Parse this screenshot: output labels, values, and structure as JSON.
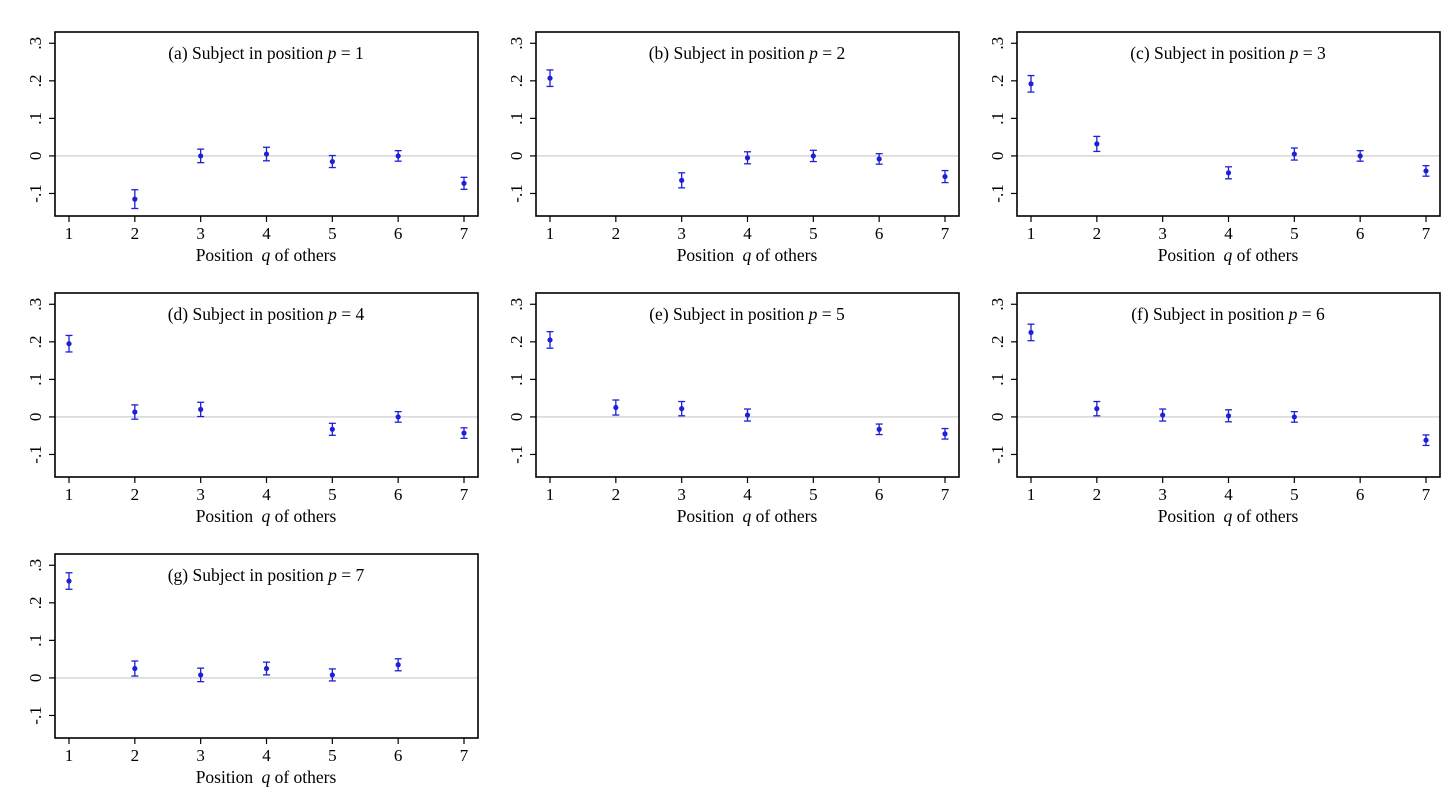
{
  "colors": {
    "marker": "#1f1fd6",
    "zero_line": "#c8c8c8",
    "frame": "#000000",
    "text": "#000000"
  },
  "chart_data": [
    {
      "type": "scatter",
      "title_prefix": "(a) Subject in position ",
      "title_var": "p",
      "title_suffix": " = 1",
      "xlabel_prefix": "Position ",
      "xlabel_var": "q",
      "xlabel_suffix": " of others",
      "x_ticks": [
        "1",
        "2",
        "3",
        "4",
        "5",
        "6",
        "7"
      ],
      "y_ticks": [
        "-.1",
        "0",
        ".1",
        ".2",
        ".3"
      ],
      "xlim": [
        1,
        7
      ],
      "ylim": [
        -0.16,
        0.33
      ],
      "reference_line": 0,
      "points": [
        {
          "x": 2,
          "y": -0.115,
          "lo": -0.14,
          "hi": -0.09
        },
        {
          "x": 3,
          "y": 0.0,
          "lo": -0.018,
          "hi": 0.018
        },
        {
          "x": 4,
          "y": 0.005,
          "lo": -0.013,
          "hi": 0.023
        },
        {
          "x": 5,
          "y": -0.015,
          "lo": -0.031,
          "hi": 0.001
        },
        {
          "x": 6,
          "y": 0.0,
          "lo": -0.014,
          "hi": 0.014
        },
        {
          "x": 7,
          "y": -0.073,
          "lo": -0.089,
          "hi": -0.057
        }
      ]
    },
    {
      "type": "scatter",
      "title_prefix": "(b) Subject in position ",
      "title_var": "p",
      "title_suffix": " = 2",
      "xlabel_prefix": "Position ",
      "xlabel_var": "q",
      "xlabel_suffix": " of others",
      "x_ticks": [
        "1",
        "2",
        "3",
        "4",
        "5",
        "6",
        "7"
      ],
      "y_ticks": [
        "-.1",
        "0",
        ".1",
        ".2",
        ".3"
      ],
      "xlim": [
        1,
        7
      ],
      "ylim": [
        -0.16,
        0.33
      ],
      "reference_line": 0,
      "points": [
        {
          "x": 1,
          "y": 0.207,
          "lo": 0.185,
          "hi": 0.229
        },
        {
          "x": 3,
          "y": -0.065,
          "lo": -0.085,
          "hi": -0.045
        },
        {
          "x": 4,
          "y": -0.005,
          "lo": -0.021,
          "hi": 0.011
        },
        {
          "x": 5,
          "y": 0.0,
          "lo": -0.015,
          "hi": 0.015
        },
        {
          "x": 6,
          "y": -0.008,
          "lo": -0.022,
          "hi": 0.006
        },
        {
          "x": 7,
          "y": -0.055,
          "lo": -0.071,
          "hi": -0.039
        }
      ]
    },
    {
      "type": "scatter",
      "title_prefix": "(c) Subject in position ",
      "title_var": "p",
      "title_suffix": " = 3",
      "xlabel_prefix": "Position ",
      "xlabel_var": "q",
      "xlabel_suffix": " of others",
      "x_ticks": [
        "1",
        "2",
        "3",
        "4",
        "5",
        "6",
        "7"
      ],
      "y_ticks": [
        "-.1",
        "0",
        ".1",
        ".2",
        ".3"
      ],
      "xlim": [
        1,
        7
      ],
      "ylim": [
        -0.16,
        0.33
      ],
      "reference_line": 0,
      "points": [
        {
          "x": 1,
          "y": 0.192,
          "lo": 0.17,
          "hi": 0.214
        },
        {
          "x": 2,
          "y": 0.032,
          "lo": 0.012,
          "hi": 0.052
        },
        {
          "x": 4,
          "y": -0.045,
          "lo": -0.061,
          "hi": -0.029
        },
        {
          "x": 5,
          "y": 0.005,
          "lo": -0.011,
          "hi": 0.021
        },
        {
          "x": 6,
          "y": 0.0,
          "lo": -0.014,
          "hi": 0.014
        },
        {
          "x": 7,
          "y": -0.04,
          "lo": -0.054,
          "hi": -0.026
        }
      ]
    },
    {
      "type": "scatter",
      "title_prefix": "(d) Subject in position ",
      "title_var": "p",
      "title_suffix": " = 4",
      "xlabel_prefix": "Position ",
      "xlabel_var": "q",
      "xlabel_suffix": " of others",
      "x_ticks": [
        "1",
        "2",
        "3",
        "4",
        "5",
        "6",
        "7"
      ],
      "y_ticks": [
        "-.1",
        "0",
        ".1",
        ".2",
        ".3"
      ],
      "xlim": [
        1,
        7
      ],
      "ylim": [
        -0.16,
        0.33
      ],
      "reference_line": 0,
      "points": [
        {
          "x": 1,
          "y": 0.195,
          "lo": 0.173,
          "hi": 0.217
        },
        {
          "x": 2,
          "y": 0.013,
          "lo": -0.006,
          "hi": 0.032
        },
        {
          "x": 3,
          "y": 0.02,
          "lo": 0.001,
          "hi": 0.039
        },
        {
          "x": 5,
          "y": -0.033,
          "lo": -0.049,
          "hi": -0.017
        },
        {
          "x": 6,
          "y": 0.0,
          "lo": -0.014,
          "hi": 0.014
        },
        {
          "x": 7,
          "y": -0.043,
          "lo": -0.057,
          "hi": -0.029
        }
      ]
    },
    {
      "type": "scatter",
      "title_prefix": "(e) Subject in position ",
      "title_var": "p",
      "title_suffix": " = 5",
      "xlabel_prefix": "Position ",
      "xlabel_var": "q",
      "xlabel_suffix": " of others",
      "x_ticks": [
        "1",
        "2",
        "3",
        "4",
        "5",
        "6",
        "7"
      ],
      "y_ticks": [
        "-.1",
        "0",
        ".1",
        ".2",
        ".3"
      ],
      "xlim": [
        1,
        7
      ],
      "ylim": [
        -0.16,
        0.33
      ],
      "reference_line": 0,
      "points": [
        {
          "x": 1,
          "y": 0.205,
          "lo": 0.183,
          "hi": 0.227
        },
        {
          "x": 2,
          "y": 0.025,
          "lo": 0.005,
          "hi": 0.045
        },
        {
          "x": 3,
          "y": 0.022,
          "lo": 0.003,
          "hi": 0.041
        },
        {
          "x": 4,
          "y": 0.005,
          "lo": -0.011,
          "hi": 0.021
        },
        {
          "x": 6,
          "y": -0.033,
          "lo": -0.047,
          "hi": -0.019
        },
        {
          "x": 7,
          "y": -0.045,
          "lo": -0.059,
          "hi": -0.031
        }
      ]
    },
    {
      "type": "scatter",
      "title_prefix": "(f) Subject in position ",
      "title_var": "p",
      "title_suffix": " = 6",
      "xlabel_prefix": "Position ",
      "xlabel_var": "q",
      "xlabel_suffix": " of others",
      "x_ticks": [
        "1",
        "2",
        "3",
        "4",
        "5",
        "6",
        "7"
      ],
      "y_ticks": [
        "-.1",
        "0",
        ".1",
        ".2",
        ".3"
      ],
      "xlim": [
        1,
        7
      ],
      "ylim": [
        -0.16,
        0.33
      ],
      "reference_line": 0,
      "points": [
        {
          "x": 1,
          "y": 0.225,
          "lo": 0.203,
          "hi": 0.247
        },
        {
          "x": 2,
          "y": 0.022,
          "lo": 0.003,
          "hi": 0.041
        },
        {
          "x": 3,
          "y": 0.005,
          "lo": -0.011,
          "hi": 0.021
        },
        {
          "x": 4,
          "y": 0.003,
          "lo": -0.013,
          "hi": 0.019
        },
        {
          "x": 5,
          "y": 0.0,
          "lo": -0.014,
          "hi": 0.014
        },
        {
          "x": 7,
          "y": -0.062,
          "lo": -0.076,
          "hi": -0.048
        }
      ]
    },
    {
      "type": "scatter",
      "title_prefix": "(g) Subject in position ",
      "title_var": "p",
      "title_suffix": " = 7",
      "xlabel_prefix": "Position ",
      "xlabel_var": "q",
      "xlabel_suffix": " of others",
      "x_ticks": [
        "1",
        "2",
        "3",
        "4",
        "5",
        "6",
        "7"
      ],
      "y_ticks": [
        "-.1",
        "0",
        ".1",
        ".2",
        ".3"
      ],
      "xlim": [
        1,
        7
      ],
      "ylim": [
        -0.16,
        0.33
      ],
      "reference_line": 0,
      "points": [
        {
          "x": 1,
          "y": 0.258,
          "lo": 0.236,
          "hi": 0.28
        },
        {
          "x": 2,
          "y": 0.025,
          "lo": 0.005,
          "hi": 0.045
        },
        {
          "x": 3,
          "y": 0.008,
          "lo": -0.01,
          "hi": 0.026
        },
        {
          "x": 4,
          "y": 0.025,
          "lo": 0.008,
          "hi": 0.042
        },
        {
          "x": 5,
          "y": 0.008,
          "lo": -0.008,
          "hi": 0.024
        },
        {
          "x": 6,
          "y": 0.035,
          "lo": 0.019,
          "hi": 0.051
        }
      ]
    }
  ]
}
